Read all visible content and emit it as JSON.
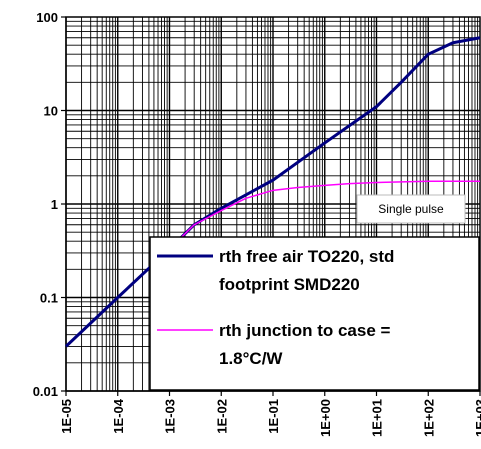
{
  "chart_data": {
    "type": "line",
    "x_scale": "log",
    "y_scale": "log",
    "xlim": [
      1e-05,
      1000
    ],
    "ylim": [
      0.01,
      100
    ],
    "grid": true,
    "x_tick_labels": [
      "1E-05",
      "1E-04",
      "1E-03",
      "1E-02",
      "1E-01",
      "1E+00",
      "1E+01",
      "1E+02",
      "1E+03"
    ],
    "y_tick_labels": [
      "0.01",
      "0.1",
      "1",
      "10",
      "100"
    ],
    "annotation": "Single pulse",
    "legend": {
      "placement": "bottom-right"
    },
    "series": [
      {
        "name": "rth free air TO220, std footprint SMD220",
        "name_lines": [
          "rth free air TO220, std",
          "footprint SMD220"
        ],
        "color": "#000080",
        "x": [
          1e-05,
          0.0001,
          0.001,
          0.003,
          0.01,
          0.1,
          1,
          10,
          30,
          100,
          300,
          1000
        ],
        "y": [
          0.03,
          0.1,
          0.33,
          0.6,
          0.9,
          1.8,
          4.5,
          11,
          20,
          40,
          53,
          60
        ]
      },
      {
        "name": "rth junction to case = 1.8°C/W",
        "name_lines": [
          "rth junction to case =",
          "1.8°C/W"
        ],
        "color": "#ff00ff",
        "x": [
          0.001,
          0.003,
          0.01,
          0.03,
          0.1,
          0.3,
          1,
          3,
          10,
          100,
          1000
        ],
        "y": [
          0.33,
          0.6,
          0.85,
          1.15,
          1.4,
          1.5,
          1.58,
          1.65,
          1.7,
          1.75,
          1.75
        ]
      }
    ]
  }
}
